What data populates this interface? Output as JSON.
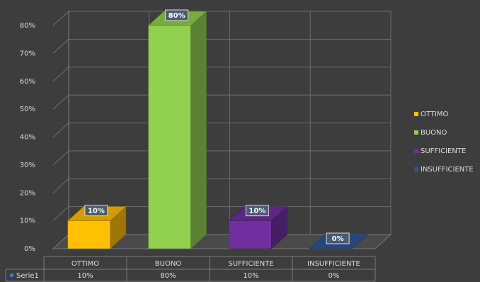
{
  "chart_data": {
    "type": "bar",
    "categories": [
      "OTTIMO",
      "BUONO",
      "SUFFICIENTE",
      "INSUFFICIENTE"
    ],
    "series": [
      {
        "name": "Serie1",
        "values": [
          10,
          80,
          10,
          0
        ]
      }
    ],
    "data_labels": [
      "10%",
      "80%",
      "10%",
      "0%"
    ],
    "table_values": [
      "10%",
      "80%",
      "10%",
      "0%"
    ],
    "ylim": [
      0,
      80
    ],
    "yticks": [
      0,
      10,
      20,
      30,
      40,
      50,
      60,
      70,
      80
    ],
    "ytick_labels": [
      "0%",
      "10%",
      "20%",
      "30%",
      "40%",
      "50%",
      "60%",
      "70%",
      "80%"
    ],
    "grid": true,
    "legend_position": "right",
    "legend": [
      "OTTIMO",
      "BUONO",
      "SUFFICIENTE",
      "INSUFFICIENTE"
    ],
    "data_table": true,
    "colors": [
      "#ffc000",
      "#92d050",
      "#7030a0",
      "#2f5597"
    ]
  }
}
